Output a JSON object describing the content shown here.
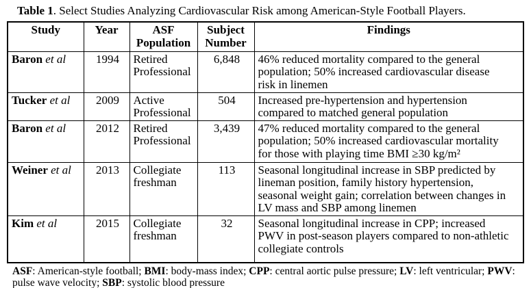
{
  "title": {
    "bold": "Table 1",
    "rest": ". Select Studies Analyzing Cardiovascular Risk among American-Style Football Players."
  },
  "table": {
    "headers": {
      "study": "Study",
      "year": "Year",
      "population": "ASF\nPopulation",
      "subjects": "Subject\nNumber",
      "findings": "Findings"
    },
    "rows": [
      {
        "author": "Baron",
        "etal": "et al",
        "year": "1994",
        "population": "Retired\nProfessional",
        "subjects": "6,848",
        "findings": "46% reduced mortality compared to the general\npopulation; 50% increased cardiovascular disease\nrisk in linemen"
      },
      {
        "author": "Tucker",
        "etal": "et al",
        "year": "2009",
        "population": "Active\nProfessional",
        "subjects": "504",
        "findings": "Increased pre-hypertension and hypertension\ncompared to matched general population"
      },
      {
        "author": "Baron",
        "etal": "et al",
        "year": "2012",
        "population": "Retired\nProfessional",
        "subjects": "3,439",
        "findings": "47% reduced mortality compared to the general\npopulation; 50% increased cardiovascular mortality\nfor those with playing time BMI ≥30 kg/m²"
      },
      {
        "author": "Weiner",
        "etal": "et al",
        "year": "2013",
        "population": "Collegiate\nfreshman",
        "subjects": "113",
        "findings": "Seasonal longitudinal increase in SBP predicted by\nlineman position, family history hypertension,\nseasonal weight gain; correlation between changes in\nLV mass and SBP among linemen"
      },
      {
        "author": "Kim",
        "etal": "et al",
        "year": "2015",
        "population": "Collegiate\nfreshman",
        "subjects": "32",
        "findings": "Seasonal longitudinal increase in CPP; increased\nPWV in post-season players compared to non-athletic\ncollegiate controls"
      }
    ]
  },
  "footnote": {
    "segments": [
      {
        "abbr": "ASF",
        "text": ": American-style football; "
      },
      {
        "abbr": "BMI",
        "text": ": body-mass index; "
      },
      {
        "abbr": "CPP",
        "text": ": central aortic pulse pressure; "
      },
      {
        "abbr": "LV",
        "text": ": left ventricular; "
      },
      {
        "abbr": "PWV",
        "text": ":\npulse wave velocity; "
      },
      {
        "abbr": "SBP",
        "text": ": systolic blood pressure"
      }
    ]
  }
}
